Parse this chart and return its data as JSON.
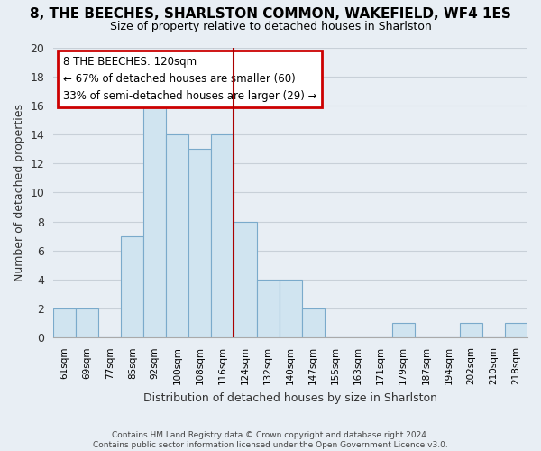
{
  "title": "8, THE BEECHES, SHARLSTON COMMON, WAKEFIELD, WF4 1ES",
  "subtitle": "Size of property relative to detached houses in Sharlston",
  "xlabel": "Distribution of detached houses by size in Sharlston",
  "ylabel": "Number of detached properties",
  "bin_labels": [
    "61sqm",
    "69sqm",
    "77sqm",
    "85sqm",
    "92sqm",
    "100sqm",
    "108sqm",
    "116sqm",
    "124sqm",
    "132sqm",
    "140sqm",
    "147sqm",
    "155sqm",
    "163sqm",
    "171sqm",
    "179sqm",
    "187sqm",
    "194sqm",
    "202sqm",
    "210sqm",
    "218sqm"
  ],
  "bar_heights": [
    2,
    2,
    0,
    7,
    16,
    14,
    13,
    14,
    8,
    4,
    4,
    2,
    0,
    0,
    0,
    1,
    0,
    0,
    1,
    0,
    1
  ],
  "bar_color": "#d0e4f0",
  "bar_edgecolor": "#7aaacb",
  "vline_color": "#aa0000",
  "annotation_title": "8 THE BEECHES: 120sqm",
  "annotation_line1": "← 67% of detached houses are smaller (60)",
  "annotation_line2": "33% of semi-detached houses are larger (29) →",
  "annotation_box_edgecolor": "#cc0000",
  "ylim": [
    0,
    20
  ],
  "yticks": [
    0,
    2,
    4,
    6,
    8,
    10,
    12,
    14,
    16,
    18,
    20
  ],
  "footer1": "Contains HM Land Registry data © Crown copyright and database right 2024.",
  "footer2": "Contains public sector information licensed under the Open Government Licence v3.0.",
  "bg_color": "#e8eef4",
  "plot_bg_color": "#e8eef4",
  "grid_color": "#c8d0d8",
  "title_fontsize": 11,
  "subtitle_fontsize": 9
}
